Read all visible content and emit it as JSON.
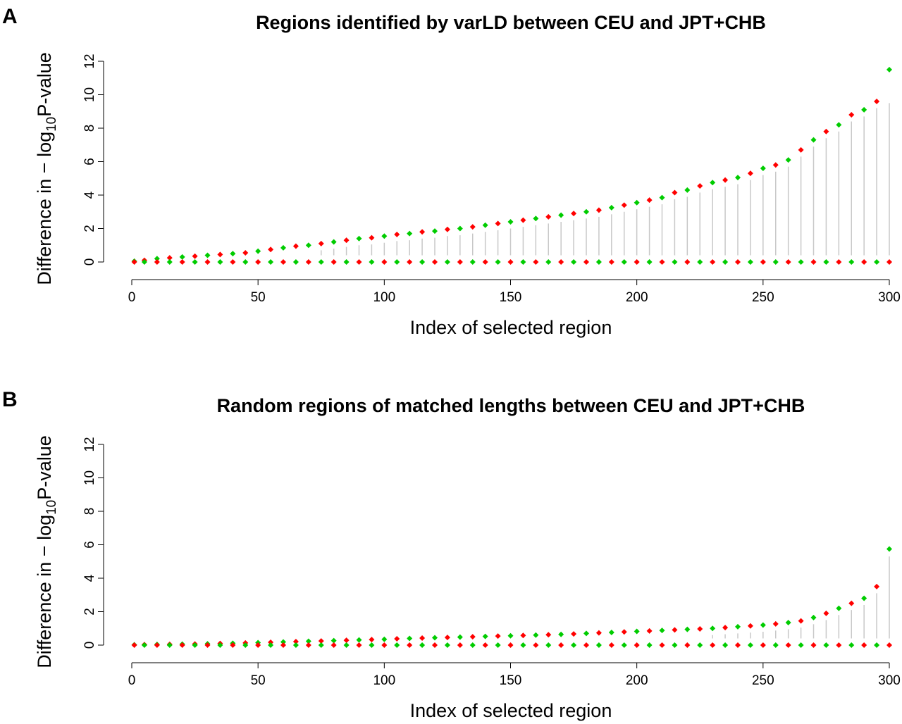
{
  "chart_data": [
    {
      "type": "scatter",
      "panel_label": "A",
      "title": "Regions identified by varLD between CEU and JPT+CHB",
      "xlabel": "Index of selected region",
      "ylabel": [
        "Difference in − log",
        "10",
        "P-value"
      ],
      "xlim": [
        0,
        300
      ],
      "ylim": [
        0,
        12
      ],
      "xticks": [
        0,
        50,
        100,
        150,
        200,
        250,
        300
      ],
      "yticks": [
        0,
        2,
        4,
        6,
        8,
        10,
        12
      ],
      "stems": {
        "color": "#c8c8c8",
        "base": 0.4,
        "x": [
          75,
          80,
          85,
          90,
          95,
          100,
          105,
          110,
          115,
          120,
          125,
          130,
          135,
          140,
          145,
          150,
          155,
          160,
          165,
          170,
          175,
          180,
          185,
          190,
          195,
          200,
          205,
          210,
          215,
          220,
          225,
          230,
          235,
          240,
          245,
          250,
          255,
          260,
          265,
          270,
          275,
          280,
          285,
          290,
          295,
          300
        ],
        "values": [
          0.7,
          0.8,
          0.9,
          1.0,
          1.05,
          1.15,
          1.25,
          1.3,
          1.4,
          1.45,
          1.55,
          1.6,
          1.7,
          1.8,
          1.9,
          2.0,
          2.1,
          2.2,
          2.3,
          2.4,
          2.5,
          2.6,
          2.7,
          2.85,
          3.0,
          3.15,
          3.3,
          3.45,
          3.75,
          3.9,
          4.15,
          4.35,
          4.5,
          4.65,
          4.9,
          5.2,
          5.4,
          5.7,
          6.3,
          6.9,
          7.4,
          7.8,
          8.4,
          8.7,
          9.2,
          9.5
        ]
      },
      "series": [
        {
          "color": "#00cc00",
          "x": [
            1,
            10,
            20,
            30,
            40,
            50,
            60,
            70,
            80,
            90,
            100,
            110,
            120,
            130,
            140,
            150,
            160,
            170,
            180,
            190,
            200,
            210,
            220,
            230,
            240,
            250,
            260,
            270,
            280,
            290,
            300
          ],
          "values": [
            0.05,
            0.2,
            0.3,
            0.4,
            0.5,
            0.65,
            0.85,
            1.0,
            1.2,
            1.4,
            1.55,
            1.7,
            1.85,
            2.0,
            2.2,
            2.4,
            2.6,
            2.8,
            3.0,
            3.25,
            3.55,
            3.85,
            4.3,
            4.75,
            5.05,
            5.6,
            6.1,
            7.3,
            8.2,
            9.1,
            11.5
          ]
        },
        {
          "color": "#ff0000",
          "x": [
            5,
            15,
            25,
            35,
            45,
            55,
            65,
            75,
            85,
            95,
            105,
            115,
            125,
            135,
            145,
            155,
            165,
            175,
            185,
            195,
            205,
            215,
            225,
            235,
            245,
            255,
            265,
            275,
            285,
            295
          ],
          "values": [
            0.1,
            0.25,
            0.35,
            0.45,
            0.55,
            0.75,
            0.95,
            1.1,
            1.3,
            1.45,
            1.65,
            1.8,
            1.95,
            2.1,
            2.3,
            2.5,
            2.7,
            2.9,
            3.1,
            3.4,
            3.7,
            4.15,
            4.55,
            4.9,
            5.3,
            5.8,
            6.7,
            7.8,
            8.8,
            9.6
          ]
        },
        {
          "color": "#ff0000",
          "x": [
            1,
            10,
            20,
            30,
            40,
            50,
            60,
            70,
            80,
            90,
            100,
            110,
            120,
            130,
            140,
            150,
            160,
            170,
            180,
            190,
            200,
            210,
            220,
            230,
            240,
            250,
            260,
            270,
            280,
            290,
            300
          ],
          "values": [
            0,
            0,
            0,
            0,
            0,
            0,
            0,
            0,
            0,
            0,
            0,
            0,
            0,
            0,
            0,
            0,
            0,
            0,
            0,
            0,
            0,
            0,
            0,
            0,
            0,
            0,
            0,
            0,
            0,
            0,
            0
          ]
        },
        {
          "color": "#00cc00",
          "x": [
            5,
            15,
            25,
            35,
            45,
            55,
            65,
            75,
            85,
            95,
            105,
            115,
            125,
            135,
            145,
            155,
            165,
            175,
            185,
            195,
            205,
            215,
            225,
            235,
            245,
            255,
            265,
            275,
            285,
            295
          ],
          "values": [
            0,
            0,
            0,
            0,
            0,
            0,
            0,
            0,
            0,
            0,
            0,
            0,
            0,
            0,
            0,
            0,
            0,
            0,
            0,
            0,
            0,
            0,
            0,
            0,
            0,
            0,
            0,
            0,
            0,
            0
          ]
        }
      ]
    },
    {
      "type": "scatter",
      "panel_label": "B",
      "title": "Random regions of matched lengths between CEU and JPT+CHB",
      "xlabel": "Index of selected region",
      "ylabel": [
        "Difference in − log",
        "10",
        "P-value"
      ],
      "xlim": [
        0,
        300
      ],
      "ylim": [
        0,
        12
      ],
      "xticks": [
        0,
        50,
        100,
        150,
        200,
        250,
        300
      ],
      "yticks": [
        0,
        2,
        4,
        6,
        8,
        10,
        12
      ],
      "stems": {
        "color": "#c8c8c8",
        "base": 0.4,
        "x": [
          230,
          235,
          240,
          245,
          250,
          255,
          260,
          265,
          270,
          275,
          280,
          285,
          290,
          295,
          300
        ],
        "values": [
          0.6,
          0.65,
          0.7,
          0.75,
          0.8,
          0.87,
          0.95,
          1.05,
          1.25,
          1.5,
          1.8,
          2.1,
          2.4,
          3.1,
          5.3
        ]
      },
      "series": [
        {
          "color": "#00cc00",
          "x": [
            1,
            10,
            20,
            30,
            40,
            50,
            60,
            70,
            80,
            90,
            100,
            110,
            120,
            130,
            140,
            150,
            160,
            170,
            180,
            190,
            200,
            210,
            220,
            230,
            240,
            250,
            260,
            270,
            280,
            290,
            300
          ],
          "values": [
            0.02,
            0.04,
            0.06,
            0.08,
            0.11,
            0.15,
            0.19,
            0.23,
            0.27,
            0.31,
            0.35,
            0.4,
            0.44,
            0.48,
            0.52,
            0.56,
            0.6,
            0.64,
            0.7,
            0.76,
            0.82,
            0.88,
            0.94,
            1.0,
            1.1,
            1.2,
            1.35,
            1.65,
            2.2,
            2.8,
            5.75
          ]
        },
        {
          "color": "#ff0000",
          "x": [
            5,
            15,
            25,
            35,
            45,
            55,
            65,
            75,
            85,
            95,
            105,
            115,
            125,
            135,
            145,
            155,
            165,
            175,
            185,
            195,
            205,
            215,
            225,
            235,
            245,
            255,
            265,
            275,
            285,
            295
          ],
          "values": [
            0.03,
            0.05,
            0.07,
            0.1,
            0.13,
            0.17,
            0.21,
            0.25,
            0.29,
            0.33,
            0.38,
            0.42,
            0.46,
            0.5,
            0.54,
            0.58,
            0.62,
            0.67,
            0.73,
            0.79,
            0.85,
            0.91,
            0.97,
            1.05,
            1.15,
            1.27,
            1.45,
            1.9,
            2.5,
            3.5
          ]
        },
        {
          "color": "#ff0000",
          "x": [
            1,
            10,
            20,
            30,
            40,
            50,
            60,
            70,
            80,
            90,
            100,
            110,
            120,
            130,
            140,
            150,
            160,
            170,
            180,
            190,
            200,
            210,
            220,
            230,
            240,
            250,
            260,
            270,
            280,
            290,
            300
          ],
          "values": [
            0,
            0,
            0,
            0,
            0,
            0,
            0,
            0,
            0,
            0,
            0,
            0,
            0,
            0,
            0,
            0,
            0,
            0,
            0,
            0,
            0,
            0,
            0,
            0,
            0,
            0,
            0,
            0,
            0,
            0,
            0
          ]
        },
        {
          "color": "#00cc00",
          "x": [
            5,
            15,
            25,
            35,
            45,
            55,
            65,
            75,
            85,
            95,
            105,
            115,
            125,
            135,
            145,
            155,
            165,
            175,
            185,
            195,
            205,
            215,
            225,
            235,
            245,
            255,
            265,
            275,
            285,
            295
          ],
          "values": [
            0,
            0,
            0,
            0,
            0,
            0,
            0,
            0,
            0,
            0,
            0,
            0,
            0,
            0,
            0,
            0,
            0,
            0,
            0,
            0,
            0,
            0,
            0,
            0,
            0,
            0,
            0,
            0,
            0,
            0
          ]
        }
      ]
    }
  ]
}
